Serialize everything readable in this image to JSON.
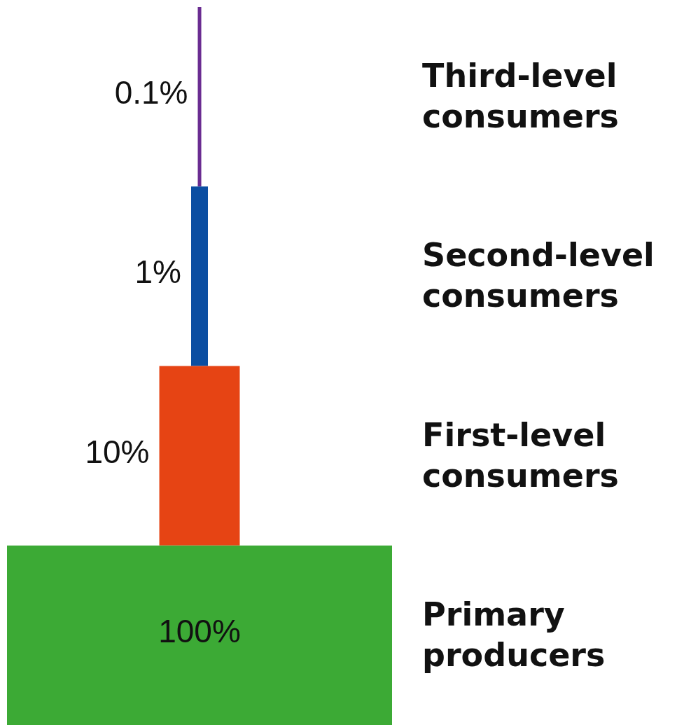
{
  "chart_data": {
    "type": "other",
    "categories": [
      "Third-level consumers",
      "Second-level consumers",
      "First-level consumers",
      "Primary producers"
    ],
    "values": [
      0.1,
      1,
      10,
      100
    ],
    "value_labels": [
      "0.1%",
      "1%",
      "10%",
      "100%"
    ],
    "colors": [
      "#6a2c91",
      "#0b4ea2",
      "#e64414",
      "#3caa35"
    ]
  }
}
